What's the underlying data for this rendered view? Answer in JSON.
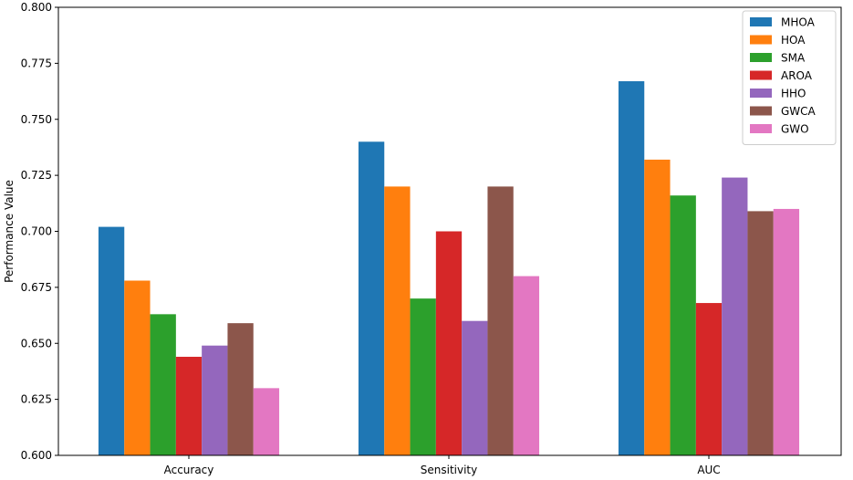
{
  "chart_data": {
    "type": "bar",
    "title": "",
    "xlabel": "",
    "ylabel": "Performance Value",
    "ylim": [
      0.6,
      0.8
    ],
    "yticks": [
      "0.600",
      "0.625",
      "0.650",
      "0.675",
      "0.700",
      "0.725",
      "0.750",
      "0.775",
      "0.800"
    ],
    "categories": [
      "Accuracy",
      "Sensitivity",
      "AUC"
    ],
    "grid": false,
    "legend_position": "top-right",
    "series": [
      {
        "name": "MHOA",
        "color": "#1f77b4",
        "values": [
          0.702,
          0.74,
          0.767
        ]
      },
      {
        "name": "HOA",
        "color": "#ff7f0e",
        "values": [
          0.678,
          0.72,
          0.732
        ]
      },
      {
        "name": "SMA",
        "color": "#2ca02c",
        "values": [
          0.663,
          0.67,
          0.716
        ]
      },
      {
        "name": "AROA",
        "color": "#d62728",
        "values": [
          0.644,
          0.7,
          0.668
        ]
      },
      {
        "name": "HHO",
        "color": "#9467bd",
        "values": [
          0.649,
          0.66,
          0.724
        ]
      },
      {
        "name": "GWCA",
        "color": "#8c564b",
        "values": [
          0.659,
          0.72,
          0.709
        ]
      },
      {
        "name": "GWO",
        "color": "#e377c2",
        "values": [
          0.63,
          0.68,
          0.71
        ]
      }
    ]
  }
}
